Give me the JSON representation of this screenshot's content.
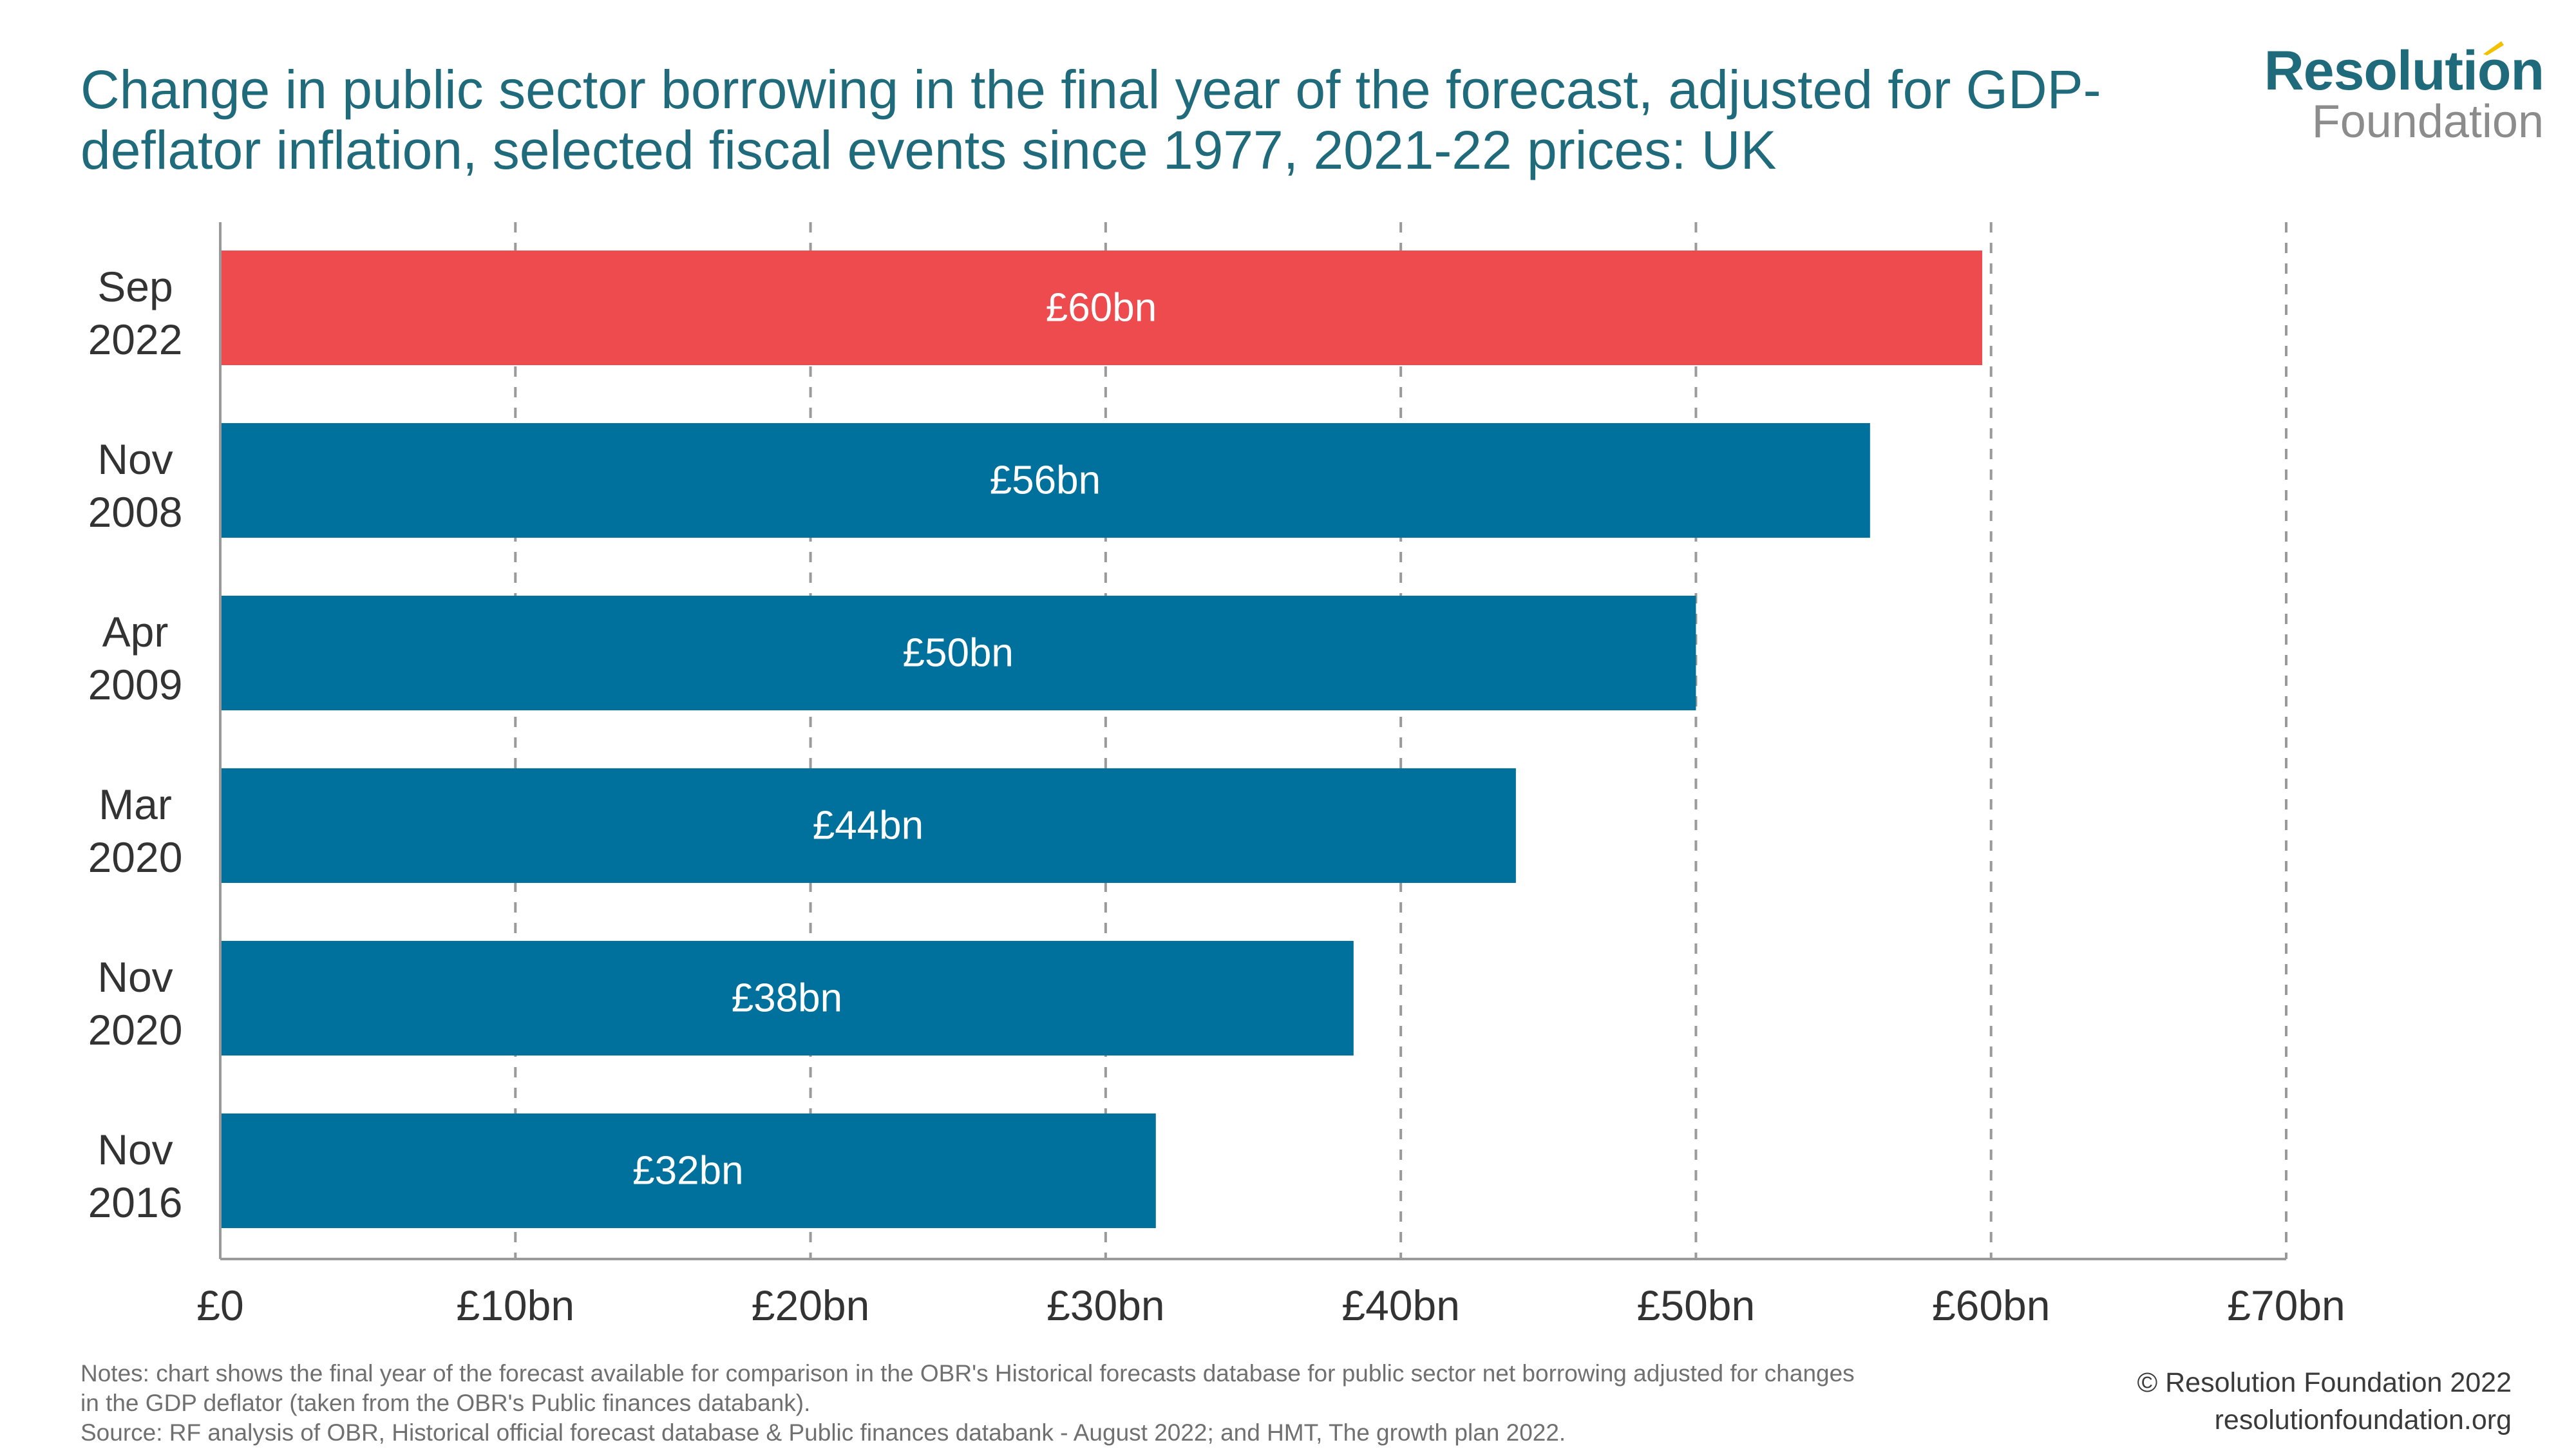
{
  "title": "Change in public sector borrowing in the final year of the forecast, adjusted for GDP-deflator inflation, selected fiscal events since 1977, 2021-22 prices: UK",
  "logo": {
    "main": "Resolution",
    "sub": "Foundation"
  },
  "chart_data": {
    "type": "bar",
    "orientation": "horizontal",
    "title": "Change in public sector borrowing in the final year of the forecast, adjusted for GDP-deflator inflation, selected fiscal events since 1977, 2021-22 prices: UK",
    "categories": [
      [
        "Sep",
        "2022"
      ],
      [
        "Nov",
        "2008"
      ],
      [
        "Apr",
        "2009"
      ],
      [
        "Mar",
        "2020"
      ],
      [
        "Nov",
        "2020"
      ],
      [
        "Nov",
        "2016"
      ]
    ],
    "values": [
      59.7,
      55.9,
      50.0,
      43.9,
      38.4,
      31.7
    ],
    "data_labels": [
      "£60bn",
      "£56bn",
      "£50bn",
      "£44bn",
      "£38bn",
      "£32bn"
    ],
    "bar_colors": [
      "#ee4b4e",
      "#00709d",
      "#00709d",
      "#00709d",
      "#00709d",
      "#00709d"
    ],
    "xlim": [
      0,
      70
    ],
    "x_ticks": [
      0,
      10,
      20,
      30,
      40,
      50,
      60,
      70
    ],
    "x_tick_labels": [
      "£0",
      "£10bn",
      "£20bn",
      "£30bn",
      "£40bn",
      "£50bn",
      "£60bn",
      "£70bn"
    ],
    "xlabel": "",
    "ylabel": "",
    "grid": "vertical dashed",
    "legend": "none"
  },
  "notes": {
    "line1": "Notes: chart shows the final year of the forecast available for comparison in the OBR's Historical forecasts database for public sector net borrowing adjusted for changes",
    "line2": "in the GDP deflator (taken from the OBR's Public finances databank).",
    "line3": "Source: RF analysis of OBR, Historical official forecast database & Public finances databank - August 2022; and HMT, The growth plan 2022."
  },
  "copyright": {
    "line1": "© Resolution Foundation 2022",
    "line2": "resolutionfoundation.org"
  }
}
